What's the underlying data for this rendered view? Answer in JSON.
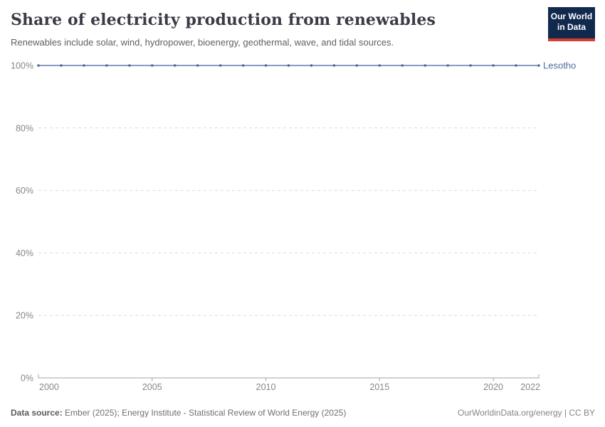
{
  "header": {
    "title": "Share of electricity production from renewables",
    "subtitle": "Renewables include solar, wind, hydropower, bioenergy, geothermal, wave, and tidal sources."
  },
  "logo": {
    "line1": "Our World",
    "line2": "in Data",
    "bg_color": "#12294e",
    "bar_color": "#d73b31"
  },
  "chart_data": {
    "type": "line",
    "title": "Share of electricity production from renewables",
    "subtitle": "Renewables include solar, wind, hydropower, bioenergy, geothermal, wave, and tidal sources.",
    "x": [
      2000,
      2001,
      2002,
      2003,
      2004,
      2005,
      2006,
      2007,
      2008,
      2009,
      2010,
      2011,
      2012,
      2013,
      2014,
      2015,
      2016,
      2017,
      2018,
      2019,
      2020,
      2021,
      2022
    ],
    "series": [
      {
        "name": "Lesotho",
        "values": [
          100,
          100,
          100,
          100,
          100,
          100,
          100,
          100,
          100,
          100,
          100,
          100,
          100,
          100,
          100,
          100,
          100,
          100,
          100,
          100,
          100,
          100,
          100
        ],
        "line_color": "#7490b7",
        "dot_color": "#4c6a9c",
        "label_color": "#4d6e9e"
      }
    ],
    "xlim": [
      2000,
      2022
    ],
    "ylim": [
      0,
      100
    ],
    "x_ticks": [
      "2000",
      "2005",
      "2010",
      "2015",
      "2020",
      "2022"
    ],
    "x_tick_years": [
      2000,
      2005,
      2010,
      2015,
      2020,
      2022
    ],
    "y_ticks": [
      0,
      20,
      40,
      60,
      80,
      100
    ],
    "y_tick_suffix": "%",
    "grid": "horizontal-dashed",
    "grid_color": "#dcdcdc",
    "axis_color": "#a3a3a3",
    "tick_label_color": "#878787",
    "legend_position": "right-of-line-end"
  },
  "footer": {
    "source_label": "Data source:",
    "source_text": " Ember (2025); Energy Institute - Statistical Review of World Energy (2025)",
    "link_text": "OurWorldinData.org/energy | CC BY"
  }
}
